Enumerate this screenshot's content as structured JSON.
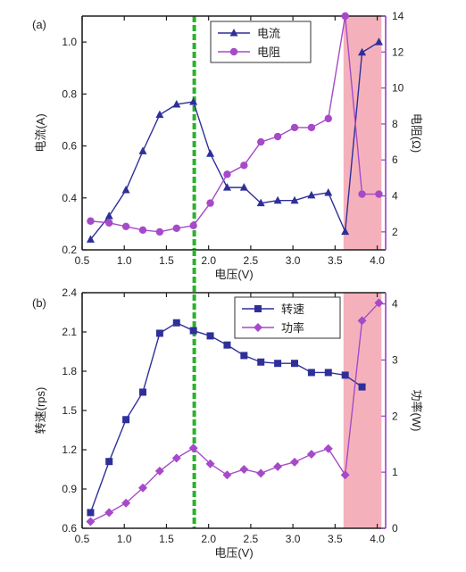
{
  "colors": {
    "blue": "#2f2f9a",
    "purple": "#a64ac9",
    "axis_left": "#1f1f1f",
    "axis_right": "#9b3fc0",
    "highlight": "#f4a9b4",
    "dashed": "#2db02d"
  },
  "chart_data": [
    {
      "type": "line",
      "panel_label": "(a)",
      "xlabel": "电压(V)",
      "ylabel_left": "电流(A)",
      "ylabel_right": "电阻(Ω)",
      "xlim": [
        0.5,
        4.1
      ],
      "ylim_left": [
        0.2,
        1.1
      ],
      "ylim_right": [
        1,
        14
      ],
      "xticks": [
        0.5,
        1.0,
        1.5,
        2.0,
        2.5,
        3.0,
        3.5,
        4.0
      ],
      "xtick_labels": [
        "0.5",
        "1.0",
        "1.5",
        "2.0",
        "2.5",
        "3.0",
        "3.5",
        "4.0"
      ],
      "yticks_left": [
        0.2,
        0.4,
        0.6,
        0.8,
        1.0
      ],
      "ytick_labels_left": [
        "0.2",
        "0.4",
        "0.6",
        "0.8",
        "1.0"
      ],
      "yticks_right": [
        2,
        4,
        6,
        8,
        10,
        12,
        14
      ],
      "ytick_labels_right": [
        "2",
        "4",
        "6",
        "8",
        "10",
        "12",
        "14"
      ],
      "legend_position": "top-center",
      "vline_x": 1.83,
      "shade_x": [
        3.6,
        4.05
      ],
      "series": [
        {
          "name": "电流",
          "axis": "left",
          "marker": "triangle",
          "color": "#2f2f9a",
          "x": [
            0.6,
            0.82,
            1.02,
            1.22,
            1.42,
            1.62,
            1.82,
            2.02,
            2.22,
            2.42,
            2.62,
            2.82,
            3.02,
            3.22,
            3.42,
            3.62,
            3.82,
            4.02
          ],
          "values": [
            0.24,
            0.33,
            0.43,
            0.58,
            0.72,
            0.76,
            0.77,
            0.57,
            0.44,
            0.44,
            0.38,
            0.39,
            0.39,
            0.41,
            0.42,
            0.27,
            0.96,
            1.0
          ]
        },
        {
          "name": "电阻",
          "axis": "right",
          "marker": "circle",
          "color": "#a64ac9",
          "x": [
            0.6,
            0.82,
            1.02,
            1.22,
            1.42,
            1.62,
            1.82,
            2.02,
            2.22,
            2.42,
            2.62,
            2.82,
            3.02,
            3.22,
            3.42,
            3.62,
            3.82,
            4.02
          ],
          "values": [
            2.6,
            2.5,
            2.3,
            2.1,
            2.0,
            2.2,
            2.35,
            3.6,
            5.2,
            5.7,
            7.0,
            7.3,
            7.8,
            7.8,
            8.3,
            14.0,
            4.1,
            4.1
          ]
        }
      ]
    },
    {
      "type": "line",
      "panel_label": "(b)",
      "xlabel": "电压(V)",
      "ylabel_left": "转速(rps)",
      "ylabel_right": "功率(W)",
      "xlim": [
        0.5,
        4.1
      ],
      "ylim_left": [
        0.6,
        2.4
      ],
      "ylim_right": [
        0,
        4.2
      ],
      "xticks": [
        0.5,
        1.0,
        1.5,
        2.0,
        2.5,
        3.0,
        3.5,
        4.0
      ],
      "xtick_labels": [
        "0.5",
        "1.0",
        "1.5",
        "2.0",
        "2.5",
        "3.0",
        "3.5",
        "4.0"
      ],
      "yticks_left": [
        0.6,
        0.9,
        1.2,
        1.5,
        1.8,
        2.1,
        2.4
      ],
      "ytick_labels_left": [
        "0.6",
        "0.9",
        "1.2",
        "1.5",
        "1.8",
        "2.1",
        "2.4"
      ],
      "yticks_right": [
        0,
        1,
        2,
        3,
        4
      ],
      "ytick_labels_right": [
        "0",
        "1",
        "2",
        "3",
        "4"
      ],
      "legend_position": "top-right",
      "vline_x": 1.83,
      "shade_x": [
        3.6,
        4.05
      ],
      "series": [
        {
          "name": "转速",
          "axis": "left",
          "marker": "square",
          "color": "#2f2f9a",
          "x": [
            0.6,
            0.82,
            1.02,
            1.22,
            1.42,
            1.62,
            1.82,
            2.02,
            2.22,
            2.42,
            2.62,
            2.82,
            3.02,
            3.22,
            3.42,
            3.62,
            3.82
          ],
          "values": [
            0.72,
            1.11,
            1.43,
            1.64,
            2.09,
            2.17,
            2.11,
            2.07,
            2.0,
            1.92,
            1.87,
            1.86,
            1.86,
            1.79,
            1.79,
            1.77,
            1.68
          ]
        },
        {
          "name": "功率",
          "axis": "right",
          "marker": "diamond",
          "color": "#a64ac9",
          "x": [
            0.6,
            0.82,
            1.02,
            1.22,
            1.42,
            1.62,
            1.82,
            2.02,
            2.22,
            2.42,
            2.62,
            2.82,
            3.02,
            3.22,
            3.42,
            3.62,
            3.82,
            4.02
          ],
          "values": [
            0.12,
            0.28,
            0.45,
            0.72,
            1.02,
            1.25,
            1.43,
            1.15,
            0.95,
            1.05,
            0.98,
            1.1,
            1.18,
            1.32,
            1.42,
            0.95,
            3.7,
            4.02
          ]
        }
      ]
    }
  ]
}
